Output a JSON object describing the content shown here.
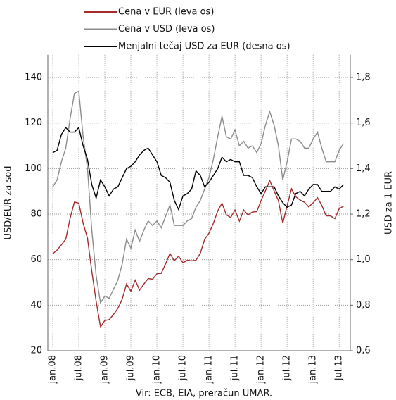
{
  "chart_data": {
    "type": "line",
    "x": [
      "jan.08",
      null,
      null,
      null,
      null,
      null,
      "jul.08",
      null,
      null,
      null,
      null,
      null,
      "jan.09",
      null,
      null,
      null,
      null,
      null,
      "jul.09",
      null,
      null,
      null,
      null,
      null,
      "jan.10",
      null,
      null,
      null,
      null,
      null,
      "jul.10",
      null,
      null,
      null,
      null,
      null,
      "jan.11",
      null,
      null,
      null,
      null,
      null,
      "jul.11",
      null,
      null,
      null,
      null,
      null,
      "jan.12",
      null,
      null,
      null,
      null,
      null,
      "jul.12",
      null,
      null,
      null,
      null,
      null,
      "jan.13",
      null,
      null,
      null,
      null,
      null,
      "jul.13",
      null
    ],
    "series": [
      {
        "name": "Cena v EUR (leva os)",
        "color": "#a52a2a",
        "values": [
          62.6,
          64.2,
          66.5,
          69,
          78.2,
          85.3,
          84.8,
          76,
          69.4,
          54.9,
          41.7,
          30.4,
          33.3,
          33.6,
          35.9,
          38.6,
          42.6,
          49.3,
          46.1,
          51,
          46.6,
          49.3,
          51.7,
          51.4,
          53.8,
          54,
          58.1,
          62.7,
          59.5,
          61.5,
          58.6,
          59.7,
          59.5,
          59.7,
          62.8,
          68.9,
          71.6,
          75.9,
          81.4,
          84.8,
          79.7,
          78.5,
          81.8,
          76.9,
          81.8,
          79.6,
          80.9,
          81.1,
          86,
          90.2,
          94.7,
          90.2,
          85.9,
          76,
          83.7,
          91.1,
          87.6,
          86.2,
          85.2,
          83.2,
          85,
          87.2,
          83.8,
          79.2,
          79.2,
          78,
          82.4,
          83.5
        ]
      },
      {
        "name": "Cena v USD (leva os)",
        "color": "#8c8c8c",
        "values": [
          92,
          95,
          103,
          109,
          122,
          133,
          134,
          114,
          100,
          73,
          53,
          41,
          44,
          43,
          47,
          51,
          58,
          69,
          65,
          73,
          68,
          73,
          77,
          75,
          77,
          74,
          79,
          84,
          75,
          75,
          75,
          77,
          78,
          83,
          86,
          91,
          96,
          104,
          114,
          123,
          114,
          113,
          117,
          110,
          112,
          109,
          110,
          107,
          111,
          119,
          125,
          119,
          110,
          95,
          103,
          113,
          113,
          112,
          109,
          109,
          113,
          116,
          109,
          103,
          103,
          103,
          108,
          111
        ]
      },
      {
        "name": "Menjalni tečaj USD za EUR (desna os)",
        "color": "#000000",
        "axis": "y2",
        "values": [
          1.47,
          1.48,
          1.55,
          1.58,
          1.56,
          1.56,
          1.58,
          1.5,
          1.44,
          1.33,
          1.27,
          1.35,
          1.32,
          1.28,
          1.31,
          1.32,
          1.36,
          1.4,
          1.41,
          1.43,
          1.46,
          1.48,
          1.49,
          1.46,
          1.43,
          1.37,
          1.36,
          1.34,
          1.26,
          1.22,
          1.28,
          1.29,
          1.31,
          1.39,
          1.37,
          1.32,
          1.34,
          1.37,
          1.4,
          1.45,
          1.43,
          1.44,
          1.43,
          1.43,
          1.37,
          1.37,
          1.36,
          1.32,
          1.29,
          1.32,
          1.32,
          1.32,
          1.28,
          1.25,
          1.23,
          1.24,
          1.29,
          1.3,
          1.28,
          1.31,
          1.33,
          1.33,
          1.3,
          1.3,
          1.3,
          1.32,
          1.31,
          1.33
        ]
      }
    ],
    "ylabel": "USD/EUR za sod",
    "y2label": "USD za 1 EUR",
    "ylim": [
      20,
      150
    ],
    "yticks": [
      20,
      40,
      60,
      80,
      100,
      120,
      140
    ],
    "y2lim": [
      0.6,
      1.9
    ],
    "y2ticks": [
      {
        "value": 0.6,
        "label": "0,6"
      },
      {
        "value": 0.8,
        "label": "0,8"
      },
      {
        "value": 1.0,
        "label": "1,0"
      },
      {
        "value": 1.2,
        "label": "1,2"
      },
      {
        "value": 1.4,
        "label": "1,4"
      },
      {
        "value": 1.6,
        "label": "1,6"
      },
      {
        "value": 1.8,
        "label": "1,8"
      }
    ],
    "grid": true,
    "source": "Vir: ECB, EIA, preračun UMAR."
  }
}
